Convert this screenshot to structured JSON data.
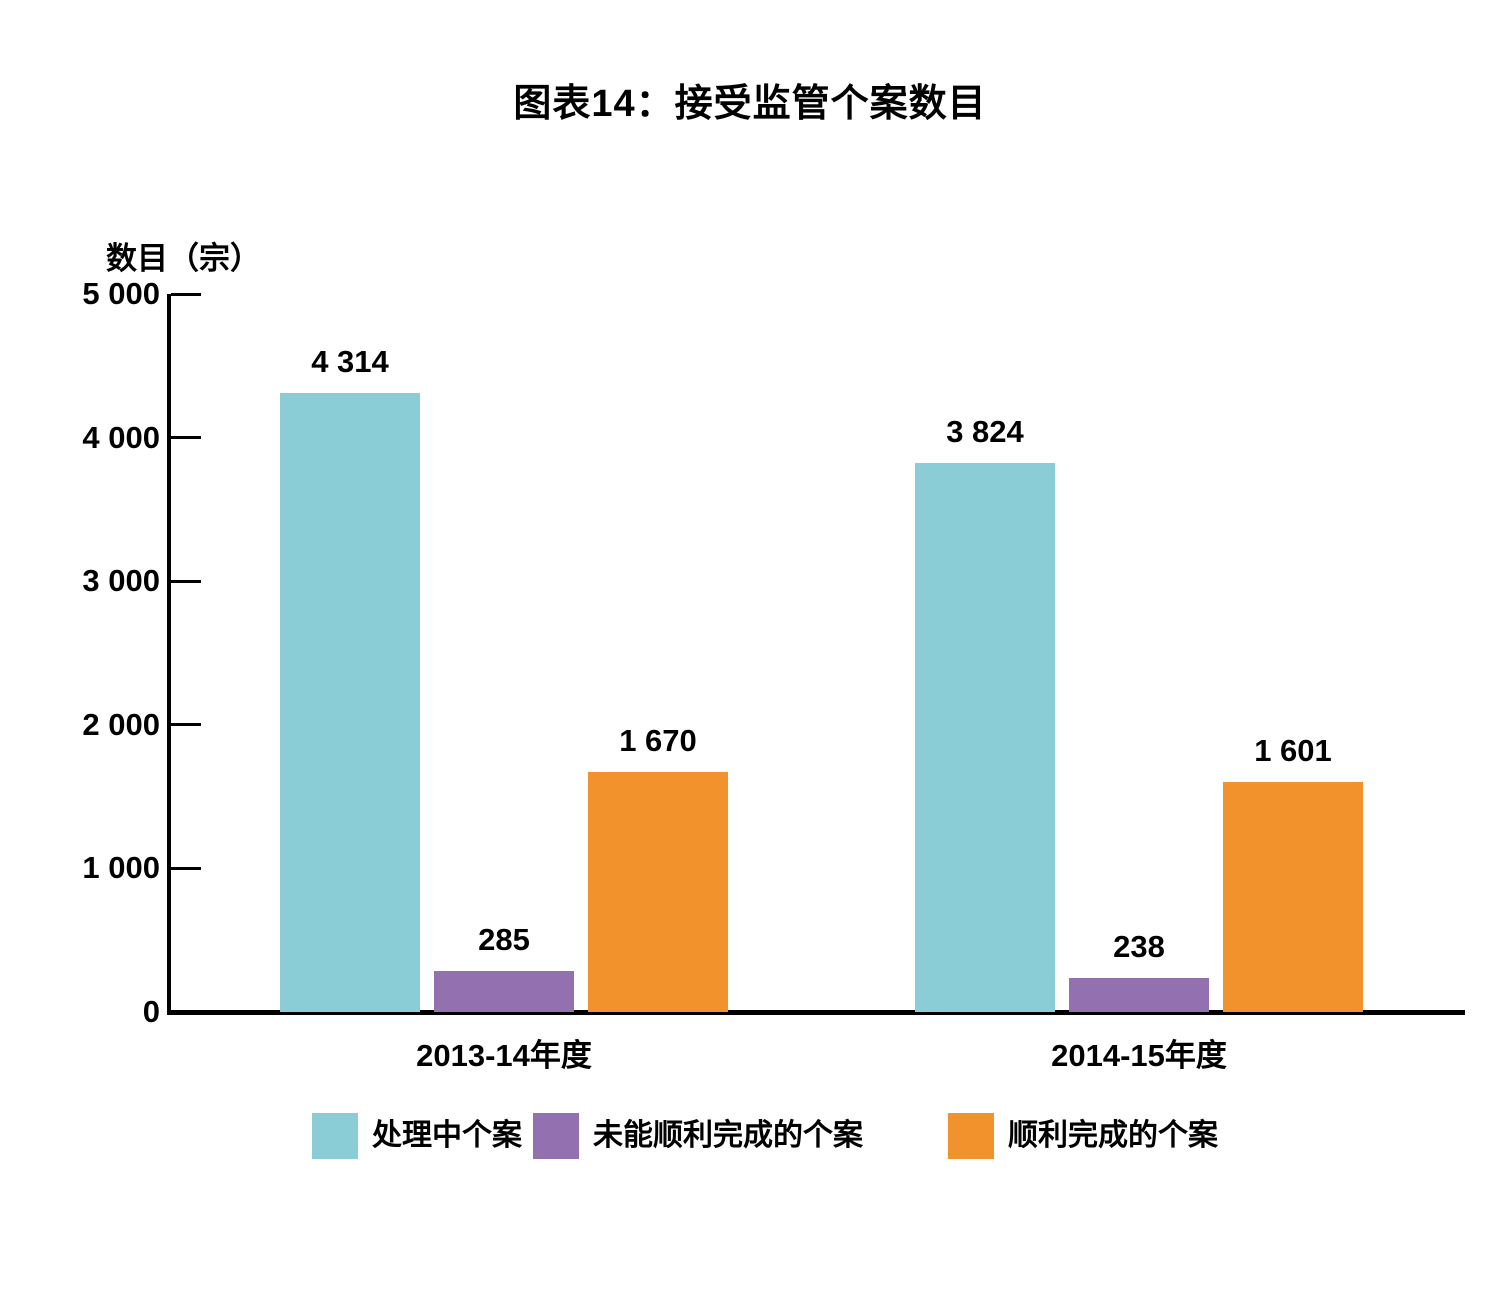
{
  "title": "图表14：接受监管个案数目",
  "chart_data": {
    "type": "bar",
    "title": "图表14：接受监管个案数目",
    "ylabel": "数目（宗）",
    "xlabel": "",
    "ylim": [
      0,
      5000
    ],
    "grid": false,
    "legend_position": "bottom",
    "yticks": [
      {
        "value": 5000,
        "label": "5 000"
      },
      {
        "value": 4000,
        "label": "4 000"
      },
      {
        "value": 3000,
        "label": "3 000"
      },
      {
        "value": 2000,
        "label": "2 000"
      },
      {
        "value": 1000,
        "label": "1 000"
      },
      {
        "value": 0,
        "label": "0"
      }
    ],
    "categories": [
      "2013-14年度",
      "2014-15年度"
    ],
    "series": [
      {
        "name": "处理中个案",
        "color": "#8BCDD7",
        "values": [
          4314,
          3824
        ],
        "value_labels": [
          "4 314",
          "3 824"
        ]
      },
      {
        "name": "未能顺利完成的个案",
        "color": "#9371B0",
        "values": [
          285,
          238
        ],
        "value_labels": [
          "285",
          "238"
        ]
      },
      {
        "name": "顺利完成的个案",
        "color": "#F2922D",
        "values": [
          1670,
          1601
        ],
        "value_labels": [
          "1 670",
          "1 601"
        ]
      }
    ]
  }
}
